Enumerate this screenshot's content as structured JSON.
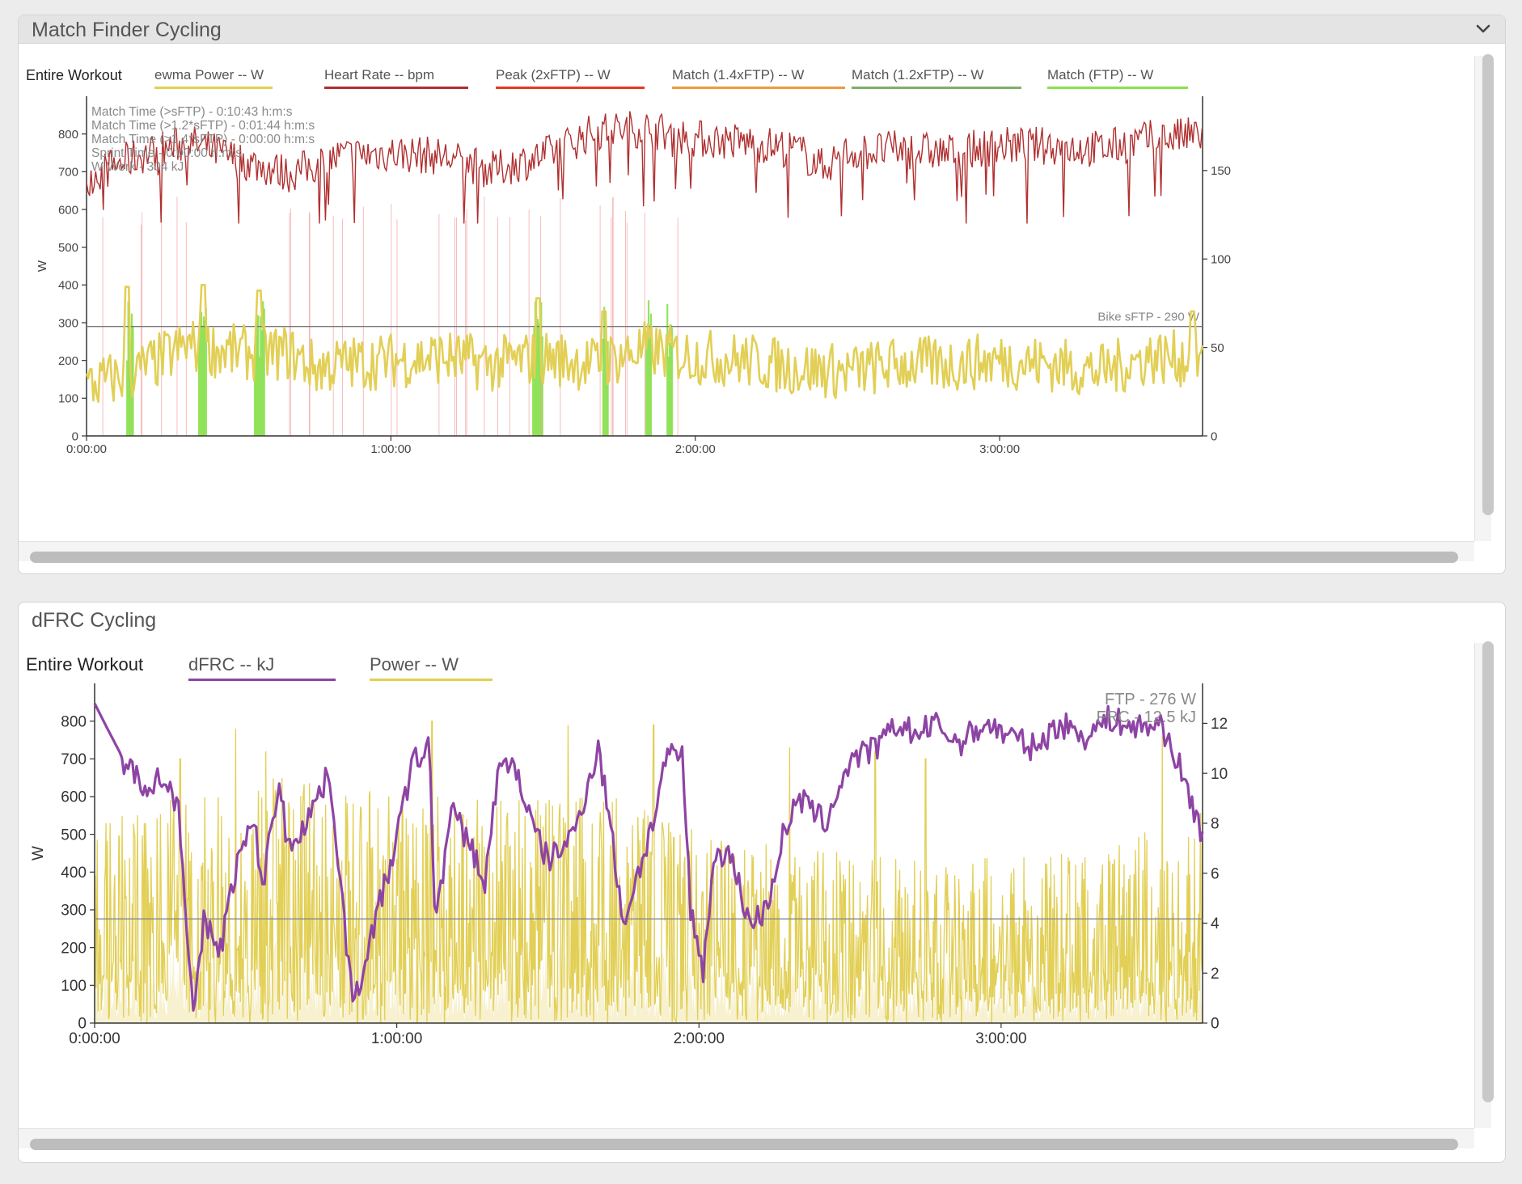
{
  "panel1": {
    "title": "Match Finder Cycling",
    "chevron_icon": "chevron-down-icon",
    "legend": {
      "range_label": "Entire Workout",
      "items": [
        {
          "label": "ewma Power  -- W",
          "color": "#e2cf55"
        },
        {
          "label": "Heart Rate  -- bpm",
          "color": "#b03030"
        },
        {
          "label": "Peak (2xFTP)  -- W",
          "color": "#e53a1e"
        },
        {
          "label": "Match (1.4xFTP)  -- W",
          "color": "#ee9a3c"
        },
        {
          "label": "Match (1.2xFTP)  -- W",
          "color": "#7fb069"
        },
        {
          "label": "Match (FTP)  -- W",
          "color": "#8be050"
        }
      ]
    },
    "chart_data": {
      "type": "line",
      "ylabel": "W",
      "yticks_left": [
        "0",
        "100",
        "200",
        "300",
        "400",
        "500",
        "600",
        "700",
        "800"
      ],
      "yticks_right": [
        "0",
        "50",
        "100",
        "150"
      ],
      "xticks": [
        "0:00:00",
        "1:00:00",
        "2:00:00",
        "3:00:00"
      ],
      "ylim_left": [
        0,
        900
      ],
      "ylim_right": [
        0,
        192
      ],
      "x_range_seconds": [
        0,
        13200
      ],
      "threshold": {
        "value": 290,
        "label": "Bike sFTP - 290 W"
      },
      "annotations": [
        "Match Time (>sFTP) - 0:10:43 h:m:s",
        "Match Time (>1.2*sFTP) - 0:01:44 h:m:s",
        "Match Time (>1.4*sFTP) - 0:00:00 h:m:s",
        "Sprint Time - 0:00:00 h:m:s",
        "W Work - 304 kJ"
      ],
      "series": [
        {
          "name": "ewma Power",
          "axis": "left",
          "color": "#e2cf55",
          "level_points": [
            [
              0,
              130
            ],
            [
              600,
              170
            ],
            [
              1200,
              240
            ],
            [
              1800,
              220
            ],
            [
              2400,
              220
            ],
            [
              2700,
              180
            ],
            [
              3000,
              190
            ],
            [
              3600,
              200
            ],
            [
              4200,
              210
            ],
            [
              4800,
              190
            ],
            [
              5400,
              210
            ],
            [
              6000,
              190
            ],
            [
              6600,
              230
            ],
            [
              7200,
              210
            ],
            [
              7800,
              200
            ],
            [
              8400,
              180
            ],
            [
              9000,
              170
            ],
            [
              9600,
              190
            ],
            [
              10200,
              190
            ],
            [
              10800,
              200
            ],
            [
              11400,
              190
            ],
            [
              12000,
              170
            ],
            [
              12600,
              210
            ],
            [
              13200,
              200
            ]
          ],
          "spikes": [
            [
              480,
              395
            ],
            [
              1380,
              400
            ],
            [
              2040,
              385
            ],
            [
              5340,
              365
            ],
            [
              6120,
              330
            ],
            [
              13080,
              330
            ]
          ]
        },
        {
          "name": "Heart Rate",
          "axis": "right",
          "color": "#b03030",
          "level_points": [
            [
              0,
              146
            ],
            [
              300,
              152
            ],
            [
              600,
              158
            ],
            [
              900,
              162
            ],
            [
              1200,
              166
            ],
            [
              1800,
              156
            ],
            [
              2400,
              148
            ],
            [
              3000,
              158
            ],
            [
              3600,
              160
            ],
            [
              4200,
              158
            ],
            [
              4800,
              150
            ],
            [
              5400,
              158
            ],
            [
              6000,
              172
            ],
            [
              6600,
              174
            ],
            [
              7200,
              168
            ],
            [
              7800,
              166
            ],
            [
              8400,
              162
            ],
            [
              8700,
              152
            ],
            [
              9000,
              160
            ],
            [
              9600,
              162
            ],
            [
              10200,
              160
            ],
            [
              10800,
              164
            ],
            [
              11400,
              164
            ],
            [
              12000,
              162
            ],
            [
              12600,
              168
            ],
            [
              13200,
              170
            ]
          ]
        }
      ]
    }
  },
  "panel2": {
    "title": "dFRC Cycling",
    "legend": {
      "range_label": "Entire Workout",
      "items": [
        {
          "label": "dFRC  -- kJ",
          "color": "#8e44a4"
        },
        {
          "label": "Power  -- W",
          "color": "#e2cf55"
        }
      ]
    },
    "chart_data": {
      "type": "line",
      "ylabel": "W",
      "yticks_left": [
        "0",
        "100",
        "200",
        "300",
        "400",
        "500",
        "600",
        "700",
        "800"
      ],
      "yticks_right": [
        "0",
        "2",
        "4",
        "6",
        "8",
        "10",
        "12"
      ],
      "xticks": [
        "0:00:00",
        "1:00:00",
        "2:00:00",
        "3:00:00"
      ],
      "ylim_left": [
        0,
        900
      ],
      "ylim_right": [
        0,
        13.6
      ],
      "x_range_seconds": [
        0,
        13200
      ],
      "threshold": {
        "value": 276
      },
      "annotations": [
        "FTP - 276 W",
        "FRC - 12.5 kJ"
      ],
      "series": [
        {
          "name": "dFRC",
          "axis": "right",
          "color": "#8e44a4",
          "points": [
            [
              0,
              12.8
            ],
            [
              150,
              11.8
            ],
            [
              400,
              10.2
            ],
            [
              600,
              9.6
            ],
            [
              800,
              9.8
            ],
            [
              1000,
              8.8
            ],
            [
              1180,
              0
            ],
            [
              1300,
              4
            ],
            [
              1500,
              3
            ],
            [
              1700,
              6.5
            ],
            [
              1900,
              8
            ],
            [
              2000,
              5.5
            ],
            [
              2200,
              9.8
            ],
            [
              2300,
              7
            ],
            [
              2500,
              8
            ],
            [
              2800,
              10
            ],
            [
              2950,
              5
            ],
            [
              3080,
              0.5
            ],
            [
              3250,
              3
            ],
            [
              3500,
              6
            ],
            [
              3800,
              10.5
            ],
            [
              3990,
              11
            ],
            [
              4060,
              4
            ],
            [
              4250,
              8.5
            ],
            [
              4500,
              7
            ],
            [
              4650,
              5.5
            ],
            [
              4800,
              10
            ],
            [
              5000,
              10.5
            ],
            [
              5200,
              8
            ],
            [
              5400,
              6.5
            ],
            [
              5700,
              7.5
            ],
            [
              6000,
              11
            ],
            [
              6100,
              9
            ],
            [
              6300,
              4
            ],
            [
              6650,
              8
            ],
            [
              6800,
              10.5
            ],
            [
              7000,
              10.8
            ],
            [
              7100,
              4.5
            ],
            [
              7250,
              2.2
            ],
            [
              7400,
              7
            ],
            [
              7600,
              6.5
            ],
            [
              7800,
              4
            ],
            [
              8000,
              4.5
            ],
            [
              8200,
              7.5
            ],
            [
              8400,
              9
            ],
            [
              8700,
              8
            ],
            [
              9000,
              10.5
            ],
            [
              9300,
              11
            ],
            [
              9600,
              12
            ],
            [
              9800,
              11.5
            ],
            [
              10000,
              12
            ],
            [
              10300,
              11.2
            ],
            [
              10600,
              12
            ],
            [
              10900,
              11.5
            ],
            [
              11200,
              11
            ],
            [
              11500,
              12
            ],
            [
              11800,
              11.5
            ],
            [
              12100,
              12.2
            ],
            [
              12400,
              11.8
            ],
            [
              12700,
              12
            ],
            [
              12900,
              10.5
            ],
            [
              13050,
              9
            ],
            [
              13150,
              8
            ],
            [
              13200,
              7.5
            ]
          ]
        },
        {
          "name": "Power",
          "axis": "left",
          "color": "#e2cf55",
          "fill": "#f7f1d0",
          "envelope_points": [
            [
              0,
              480
            ],
            [
              1200,
              560
            ],
            [
              2400,
              600
            ],
            [
              3600,
              560
            ],
            [
              4800,
              540
            ],
            [
              6000,
              560
            ],
            [
              7200,
              460
            ],
            [
              8400,
              420
            ],
            [
              9600,
              400
            ],
            [
              10800,
              400
            ],
            [
              12000,
              420
            ],
            [
              13200,
              520
            ]
          ],
          "peaks": [
            [
              1020,
              700
            ],
            [
              1680,
              780
            ],
            [
              2040,
              720
            ],
            [
              4020,
              800
            ],
            [
              5640,
              790
            ],
            [
              6660,
              790
            ],
            [
              8280,
              730
            ],
            [
              9300,
              720
            ],
            [
              9900,
              700
            ],
            [
              12720,
              760
            ]
          ]
        }
      ]
    }
  }
}
